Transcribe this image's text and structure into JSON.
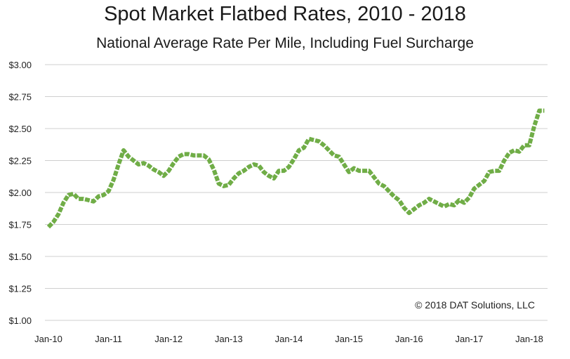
{
  "chart_data": {
    "type": "line",
    "title": "Spot Market Flatbed Rates, 2010 - 2018",
    "subtitle": "National Average Rate Per Mile, Including Fuel Surcharge",
    "xlabel": "",
    "ylabel": "",
    "ylim": [
      1.0,
      3.0
    ],
    "yticks": [
      "$3.00",
      "$2.75",
      "$2.50",
      "$2.25",
      "$2.00",
      "$1.75",
      "$1.50",
      "$1.25",
      "$1.00"
    ],
    "ytick_values": [
      3.0,
      2.75,
      2.5,
      2.25,
      2.0,
      1.75,
      1.5,
      1.25,
      1.0
    ],
    "xticks": [
      "Jan-10",
      "Jan-11",
      "Jan-12",
      "Jan-13",
      "Jan-14",
      "Jan-15",
      "Jan-16",
      "Jan-17",
      "Jan-18"
    ],
    "grid": true,
    "legend": "none",
    "annotation": "© 2018 DAT Solutions, LLC",
    "series": [
      {
        "color": "#70ad47",
        "x": [
          "2010-01",
          "2010-02",
          "2010-03",
          "2010-04",
          "2010-05",
          "2010-06",
          "2010-07",
          "2010-08",
          "2010-09",
          "2010-10",
          "2010-11",
          "2010-12",
          "2011-01",
          "2011-02",
          "2011-03",
          "2011-04",
          "2011-05",
          "2011-06",
          "2011-07",
          "2011-08",
          "2011-09",
          "2011-10",
          "2011-11",
          "2011-12",
          "2012-01",
          "2012-02",
          "2012-03",
          "2012-04",
          "2012-05",
          "2012-06",
          "2012-07",
          "2012-08",
          "2012-09",
          "2012-10",
          "2012-11",
          "2012-12",
          "2013-01",
          "2013-02",
          "2013-03",
          "2013-04",
          "2013-05",
          "2013-06",
          "2013-07",
          "2013-08",
          "2013-09",
          "2013-10",
          "2013-11",
          "2013-12",
          "2014-01",
          "2014-02",
          "2014-03",
          "2014-04",
          "2014-05",
          "2014-06",
          "2014-07",
          "2014-08",
          "2014-09",
          "2014-10",
          "2014-11",
          "2014-12",
          "2015-01",
          "2015-02",
          "2015-03",
          "2015-04",
          "2015-05",
          "2015-06",
          "2015-07",
          "2015-08",
          "2015-09",
          "2015-10",
          "2015-11",
          "2015-12",
          "2016-01",
          "2016-02",
          "2016-03",
          "2016-04",
          "2016-05",
          "2016-06",
          "2016-07",
          "2016-08",
          "2016-09",
          "2016-10",
          "2016-11",
          "2016-12",
          "2017-01",
          "2017-02",
          "2017-03",
          "2017-04",
          "2017-05",
          "2017-06",
          "2017-07",
          "2017-08",
          "2017-09",
          "2017-10",
          "2017-11",
          "2017-12",
          "2018-01",
          "2018-02",
          "2018-03",
          "2018-04"
        ],
        "values": [
          1.73,
          1.77,
          1.83,
          1.92,
          1.98,
          1.99,
          1.95,
          1.95,
          1.94,
          1.93,
          1.97,
          1.98,
          2.01,
          2.1,
          2.22,
          2.33,
          2.28,
          2.25,
          2.22,
          2.23,
          2.21,
          2.18,
          2.16,
          2.13,
          2.17,
          2.23,
          2.28,
          2.3,
          2.3,
          2.29,
          2.29,
          2.29,
          2.26,
          2.18,
          2.07,
          2.05,
          2.06,
          2.11,
          2.15,
          2.17,
          2.2,
          2.22,
          2.21,
          2.16,
          2.13,
          2.11,
          2.17,
          2.17,
          2.2,
          2.26,
          2.33,
          2.35,
          2.42,
          2.41,
          2.4,
          2.37,
          2.33,
          2.29,
          2.28,
          2.22,
          2.16,
          2.19,
          2.17,
          2.17,
          2.17,
          2.12,
          2.07,
          2.05,
          2.01,
          1.97,
          1.94,
          1.88,
          1.84,
          1.87,
          1.9,
          1.92,
          1.95,
          1.93,
          1.91,
          1.89,
          1.91,
          1.9,
          1.94,
          1.92,
          1.96,
          2.03,
          2.06,
          2.09,
          2.16,
          2.17,
          2.17,
          2.25,
          2.31,
          2.33,
          2.32,
          2.37,
          2.37,
          2.52,
          2.64,
          2.64
        ]
      }
    ]
  }
}
